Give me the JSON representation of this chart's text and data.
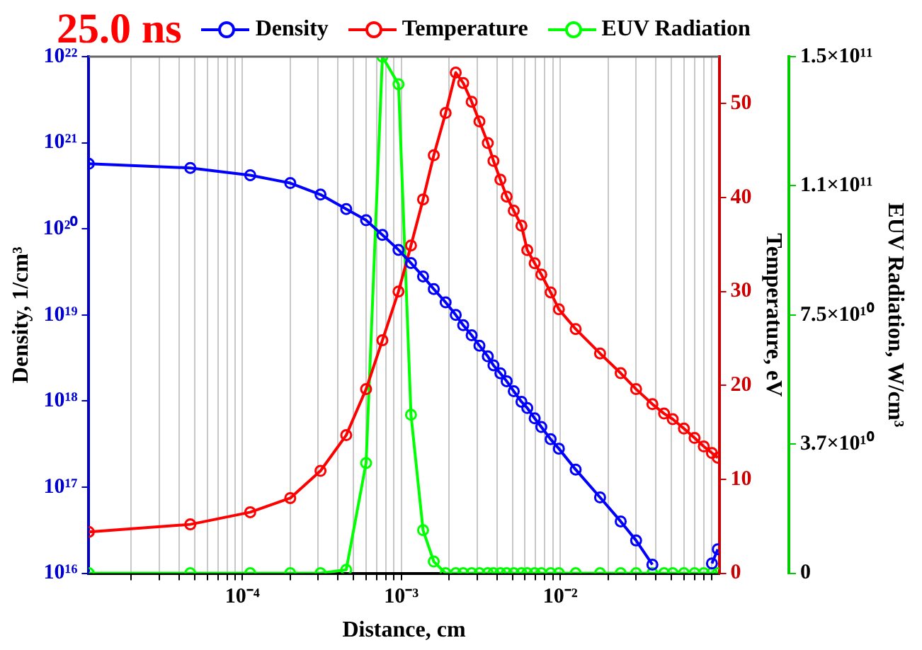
{
  "chart_data": {
    "type": "line",
    "title": "25.0 ns",
    "xlabel": "Distance, cm",
    "ylabel": "Density, 1/cm³",
    "y2label": "Temperature, eV",
    "y3label": "EUV Radiation, W/cm³",
    "x": [
      1.08e-05,
      4.7e-05,
      0.000112,
      0.0002,
      0.00031,
      0.00045,
      0.0006,
      0.00076,
      0.00096,
      0.00115,
      0.00137,
      0.0016,
      0.0019,
      0.0022,
      0.00245,
      0.00277,
      0.0031,
      0.0035,
      0.0038,
      0.0042,
      0.0046,
      0.0051,
      0.0057,
      0.0062,
      0.0069,
      0.0076,
      0.0087,
      0.0098,
      0.0125,
      0.0178,
      0.024,
      0.03,
      0.038,
      0.045,
      0.051,
      0.06,
      0.07,
      0.08,
      0.09,
      0.098
    ],
    "series": [
      {
        "name": "Density",
        "color": "#0000ff",
        "axis": "y",
        "values": [
          5.7e+20,
          5.1e+20,
          4.2e+20,
          3.4e+20,
          2.5e+20,
          1.7e+20,
          1.26e+20,
          8.5e+19,
          5.7e+19,
          4e+19,
          2.8e+19,
          2e+19,
          1.4e+19,
          1e+19,
          7.6e+18,
          5.8e+18,
          4.4e+18,
          3.3e+18,
          2.6e+18,
          2.1e+18,
          1.7e+18,
          1.3e+18,
          9.8e+17,
          8.3e+17,
          6.3e+17,
          5e+17,
          3.6e+17,
          2.8e+17,
          1.6e+17,
          7.6e+16,
          4e+16,
          2.4e+16,
          1.26e+16,
          null,
          null,
          null,
          null,
          null,
          1.3e+16,
          1.9e+16
        ]
      },
      {
        "name": "Temperature",
        "color": "#ff0000",
        "axis": "y2",
        "values": [
          4.4,
          5.2,
          6.5,
          8.0,
          10.9,
          14.7,
          19.6,
          24.8,
          30.0,
          34.9,
          39.8,
          44.5,
          49.0,
          53.3,
          52.2,
          50.2,
          48.1,
          45.8,
          43.9,
          41.9,
          40.1,
          38.6,
          37.0,
          34.4,
          33.0,
          31.8,
          29.9,
          28.1,
          26.0,
          23.4,
          21.3,
          19.6,
          18.0,
          17.0,
          16.4,
          15.4,
          14.4,
          13.5,
          12.8,
          12.3
        ]
      },
      {
        "name": "EUV Radiation",
        "color": "#00ff00",
        "axis": "y3",
        "values": [
          0,
          0,
          0,
          0,
          0,
          1000000000.0,
          32000000000.0,
          150000000000.0,
          142000000000.0,
          46000000000.0,
          12500000000.0,
          3400000000.0,
          0,
          0,
          0,
          0,
          0,
          0,
          0,
          0,
          0,
          0,
          0,
          0,
          0,
          0,
          0,
          0,
          0,
          0,
          0,
          0,
          0,
          0,
          0,
          0,
          0,
          0,
          0,
          0
        ]
      }
    ],
    "log": "xy",
    "xlim": [
      1.08e-05,
      0.1
    ],
    "xticks": [
      {
        "value": 2e-05,
        "label": null
      },
      {
        "value": 3e-05,
        "label": null
      },
      {
        "value": 4e-05,
        "label": null
      },
      {
        "value": 5e-05,
        "label": null
      },
      {
        "value": 6e-05,
        "label": null
      },
      {
        "value": 7e-05,
        "label": null
      },
      {
        "value": 8e-05,
        "label": null
      },
      {
        "value": 9e-05,
        "label": null
      },
      {
        "value": 0.0001,
        "label": "10⁻⁴"
      },
      {
        "value": 0.0002,
        "label": null
      },
      {
        "value": 0.0003,
        "label": null
      },
      {
        "value": 0.0004,
        "label": null
      },
      {
        "value": 0.0005,
        "label": null
      },
      {
        "value": 0.0006,
        "label": null
      },
      {
        "value": 0.0007,
        "label": null
      },
      {
        "value": 0.0008,
        "label": null
      },
      {
        "value": 0.0009,
        "label": null
      },
      {
        "value": 0.001,
        "label": "10⁻³"
      },
      {
        "value": 0.002,
        "label": null
      },
      {
        "value": 0.003,
        "label": null
      },
      {
        "value": 0.004,
        "label": null
      },
      {
        "value": 0.005,
        "label": null
      },
      {
        "value": 0.006,
        "label": null
      },
      {
        "value": 0.007,
        "label": null
      },
      {
        "value": 0.008,
        "label": null
      },
      {
        "value": 0.009,
        "label": null
      },
      {
        "value": 0.01,
        "label": "10⁻²"
      },
      {
        "value": 0.02,
        "label": null
      },
      {
        "value": 0.03,
        "label": null
      },
      {
        "value": 0.04,
        "label": null
      },
      {
        "value": 0.05,
        "label": null
      },
      {
        "value": 0.06,
        "label": null
      },
      {
        "value": 0.07,
        "label": null
      },
      {
        "value": 0.08,
        "label": null
      },
      {
        "value": 0.09,
        "label": null
      }
    ],
    "ylim": [
      1e+16,
      1e+22
    ],
    "yticks": [
      {
        "value": 1e+16,
        "label": "10¹⁶"
      },
      {
        "value": 1e+17,
        "label": "10¹⁷"
      },
      {
        "value": 1e+18,
        "label": "10¹⁸"
      },
      {
        "value": 1e+19,
        "label": "10¹⁹"
      },
      {
        "value": 1e+20,
        "label": "10²⁰"
      },
      {
        "value": 1e+21,
        "label": "10²¹"
      },
      {
        "value": 1e+22,
        "label": "10²²"
      }
    ],
    "y2lim": [
      0,
      55
    ],
    "y2ticks": [
      0,
      10,
      20,
      30,
      40,
      50
    ],
    "y3lim": [
      0,
      150000000000.0
    ],
    "y3ticks": [
      0,
      {
        "value": 37500000000.0,
        "label": "3.7×10¹⁰"
      },
      {
        "value": 75000000000.0,
        "label": "7.5×10¹⁰"
      },
      {
        "value": 112500000000.0,
        "label": "1.1×10¹¹"
      },
      {
        "value": 150000000000.0,
        "label": "1.5×10¹¹"
      }
    ],
    "grid": "x",
    "legend": "top",
    "marker": "circle",
    "line_style": "solid"
  }
}
